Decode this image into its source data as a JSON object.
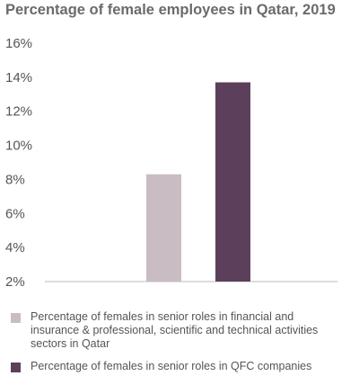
{
  "chart_data": {
    "type": "bar",
    "title": "Percentage of female employees in Qatar, 2019",
    "ylim": [
      2,
      16
    ],
    "yticks": [
      "2%",
      "4%",
      "6%",
      "8%",
      "10%",
      "12%",
      "14%",
      "16%"
    ],
    "ytick_values": [
      2,
      4,
      6,
      8,
      10,
      12,
      14,
      16
    ],
    "grid": false,
    "legend_position": "bottom",
    "series": [
      {
        "name": "Percentage of females in senior roles in financial and insurance & professional, scientific and technical activities sectors in Qatar",
        "value": 8.3,
        "color": "#c9bcc3"
      },
      {
        "name": "Percentage of females in senior roles in QFC companies",
        "value": 13.7,
        "color": "#5c3f5a"
      }
    ]
  }
}
